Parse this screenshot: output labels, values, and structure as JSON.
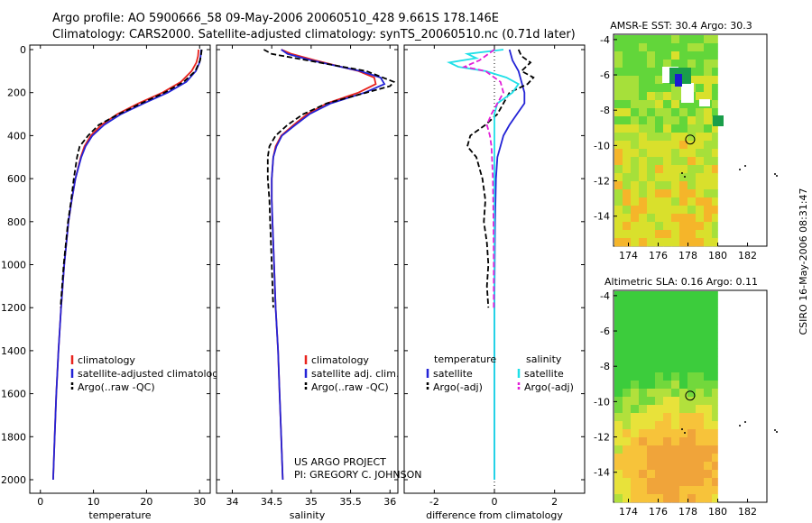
{
  "header": {
    "line1": "Argo profile: AO 5900666_58 09-May-2006 20060510_428 9.661S 178.146E",
    "line2": "Climatology: CARS2000. Satellite-adjusted climatology: synTS_20060510.nc (0.71d later)"
  },
  "side_credit": "CSIRO 16-May-2006 08:31:47",
  "project_credit": {
    "line1": "US ARGO PROJECT",
    "line2": "PI: GREGORY C. JOHNSON"
  },
  "colors": {
    "red": "#e8231d",
    "blue": "#2323d6",
    "black": "#000000",
    "cyan": "#1fe0e8",
    "magenta": "#e21fd8"
  },
  "chart_data": [
    {
      "id": "temperature",
      "type": "line",
      "xlabel": "temperature",
      "xlim": [
        -2,
        32
      ],
      "xticks": [
        0,
        10,
        20,
        30
      ],
      "ylim": [
        0,
        2100
      ],
      "yticks": [
        0,
        200,
        400,
        600,
        800,
        1000,
        1200,
        1400,
        1600,
        1800,
        2000
      ],
      "y_inverted": true,
      "legend": [
        "climatology",
        "satellite-adjusted climatology",
        "Argo(..raw -QC)"
      ],
      "series": [
        {
          "name": "climatology",
          "color": "red",
          "dash": "",
          "depth": [
            0,
            30,
            60,
            100,
            150,
            200,
            250,
            300,
            350,
            400,
            450,
            500,
            600,
            700,
            800,
            1000,
            1200,
            1400,
            1600,
            1800,
            2000
          ],
          "values": [
            29.8,
            29.7,
            29.4,
            28.5,
            26.5,
            23.0,
            18.5,
            14.5,
            11.5,
            9.5,
            8.3,
            7.6,
            6.6,
            5.9,
            5.3,
            4.5,
            3.9,
            3.4,
            3.0,
            2.7,
            2.4
          ]
        },
        {
          "name": "satellite-adjusted climatology",
          "color": "blue",
          "dash": "",
          "depth": [
            0,
            30,
            60,
            100,
            150,
            200,
            250,
            300,
            350,
            400,
            450,
            500,
            600,
            700,
            800,
            1000,
            1200,
            1400,
            1600,
            1800,
            2000
          ],
          "values": [
            30.3,
            30.2,
            30.0,
            29.3,
            27.5,
            24.0,
            19.5,
            15.2,
            12.0,
            9.8,
            8.5,
            7.7,
            6.6,
            5.9,
            5.3,
            4.5,
            3.9,
            3.4,
            3.0,
            2.7,
            2.4
          ]
        },
        {
          "name": "Argo(..raw -QC)",
          "color": "black",
          "dash": "6,3",
          "depth": [
            0,
            20,
            50,
            100,
            150,
            200,
            250,
            300,
            350,
            400,
            450,
            500,
            600,
            700,
            800,
            1000,
            1200
          ],
          "values": [
            30.4,
            30.3,
            30.1,
            29.2,
            27.0,
            23.4,
            19.0,
            14.8,
            11.0,
            9.0,
            7.4,
            6.9,
            6.3,
            5.8,
            5.2,
            4.4,
            3.8
          ]
        }
      ]
    },
    {
      "id": "salinity",
      "type": "line",
      "xlabel": "salinity",
      "xlim": [
        33.8,
        36.1
      ],
      "xticks": [
        34,
        34.5,
        35,
        35.5,
        36
      ],
      "ylim": [
        0,
        2100
      ],
      "y_inverted": true,
      "legend": [
        "climatology",
        "satellite adj. clim.",
        "Argo(..raw -QC)"
      ],
      "series": [
        {
          "name": "climatology",
          "color": "red",
          "dash": "",
          "depth": [
            0,
            20,
            50,
            100,
            130,
            160,
            200,
            250,
            300,
            350,
            400,
            450,
            500,
            600,
            700,
            800,
            1000,
            1200,
            1400,
            1600,
            1800,
            2000
          ],
          "values": [
            34.62,
            34.75,
            35.05,
            35.6,
            35.8,
            35.82,
            35.6,
            35.2,
            34.95,
            34.78,
            34.62,
            34.55,
            34.52,
            34.5,
            34.5,
            34.51,
            34.53,
            34.55,
            34.58,
            34.6,
            34.62,
            34.64
          ]
        },
        {
          "name": "satellite adj. clim.",
          "color": "blue",
          "dash": "",
          "depth": [
            0,
            20,
            50,
            100,
            130,
            160,
            200,
            250,
            300,
            350,
            400,
            450,
            500,
            600,
            700,
            800,
            1000,
            1200,
            1400,
            1600,
            1800,
            2000
          ],
          "values": [
            34.62,
            34.7,
            35.0,
            35.62,
            35.88,
            35.93,
            35.68,
            35.25,
            34.98,
            34.8,
            34.63,
            34.56,
            34.52,
            34.5,
            34.5,
            34.51,
            34.53,
            34.55,
            34.58,
            34.6,
            34.62,
            34.64
          ]
        },
        {
          "name": "Argo(..raw -QC)",
          "color": "black",
          "dash": "6,3",
          "depth": [
            0,
            20,
            50,
            100,
            150,
            170,
            200,
            250,
            300,
            350,
            400,
            450,
            500,
            600,
            700,
            800,
            1000,
            1200
          ],
          "values": [
            34.4,
            34.5,
            34.95,
            35.7,
            36.05,
            36.0,
            35.7,
            35.2,
            34.9,
            34.7,
            34.55,
            34.47,
            34.45,
            34.45,
            34.47,
            34.48,
            34.5,
            34.52
          ]
        }
      ]
    },
    {
      "id": "difference",
      "type": "line",
      "xlabel": "difference from climatology",
      "xlim": [
        -3,
        3
      ],
      "xticks": [
        -2,
        0,
        2
      ],
      "ylim": [
        0,
        2100
      ],
      "y_inverted": true,
      "zero_line": 0,
      "legend_left_title": "temperature",
      "legend_right_title": "salinity",
      "legend": [
        "satellite",
        "Argo(-adj)",
        "satellite",
        "Argo(-adj)"
      ],
      "series": [
        {
          "name": "temperature satellite",
          "color": "blue",
          "dash": "",
          "depth": [
            0,
            50,
            100,
            150,
            200,
            250,
            300,
            350,
            400,
            450,
            500,
            600,
            800,
            1000,
            1200,
            1500,
            2000
          ],
          "values": [
            0.5,
            0.6,
            0.8,
            0.9,
            1.0,
            1.0,
            0.75,
            0.5,
            0.3,
            0.2,
            0.1,
            0.05,
            0.02,
            0.01,
            0.0,
            0.0,
            0.0
          ]
        },
        {
          "name": "temperature Argo(-adj)",
          "color": "black",
          "dash": "6,3",
          "depth": [
            0,
            30,
            60,
            100,
            130,
            160,
            200,
            250,
            300,
            350,
            400,
            450,
            500,
            550,
            600,
            700,
            800,
            900,
            1000,
            1100,
            1200
          ],
          "values": [
            0.8,
            0.9,
            1.2,
            0.9,
            1.3,
            1.1,
            0.5,
            0.3,
            0.1,
            -0.3,
            -0.8,
            -0.9,
            -0.6,
            -0.5,
            -0.4,
            -0.3,
            -0.35,
            -0.25,
            -0.2,
            -0.25,
            -0.2
          ]
        },
        {
          "name": "salinity satellite",
          "color": "cyan",
          "dash": "",
          "depth": [
            0,
            20,
            40,
            60,
            80,
            100,
            130,
            160,
            200,
            250,
            300,
            400,
            500,
            600,
            800,
            1000,
            1500,
            2000
          ],
          "values": [
            0.3,
            -0.9,
            -0.6,
            -1.5,
            -1.2,
            -0.3,
            0.4,
            0.8,
            0.6,
            0.1,
            0.0,
            0.0,
            0.0,
            0.0,
            0.0,
            0.0,
            0.0,
            0.0
          ]
        },
        {
          "name": "salinity Argo(-adj)",
          "color": "magenta",
          "dash": "6,3",
          "depth": [
            0,
            20,
            50,
            80,
            100,
            150,
            200,
            250,
            300,
            350,
            400,
            450,
            500,
            600,
            800,
            1000,
            1200
          ],
          "values": [
            0.0,
            -0.2,
            -0.5,
            -1.0,
            -0.3,
            0.2,
            0.3,
            0.1,
            -0.1,
            -0.25,
            -0.15,
            -0.1,
            -0.08,
            -0.05,
            -0.03,
            -0.02,
            -0.02
          ]
        }
      ]
    },
    {
      "id": "sst_map",
      "type": "heatmap",
      "title": "AMSR-E SST: 30.4  Argo: 30.3",
      "xticks": [
        174,
        176,
        178,
        180,
        182
      ],
      "yticks": [
        -4,
        -6,
        -8,
        -10,
        -12,
        -14
      ],
      "xlim": [
        173,
        183.3
      ],
      "ylim": [
        -15.7,
        -3.7
      ],
      "float_marker": [
        178.146,
        -9.661
      ]
    },
    {
      "id": "sla_map",
      "type": "heatmap",
      "title": "Altimetric SLA: 0.16  Argo: 0.11",
      "xticks": [
        174,
        176,
        178,
        180,
        182
      ],
      "yticks": [
        -4,
        -6,
        -8,
        -10,
        -12,
        -14
      ],
      "xlim": [
        173,
        183.3
      ],
      "ylim": [
        -15.7,
        -3.7
      ],
      "float_marker": [
        178.146,
        -9.661
      ]
    }
  ]
}
